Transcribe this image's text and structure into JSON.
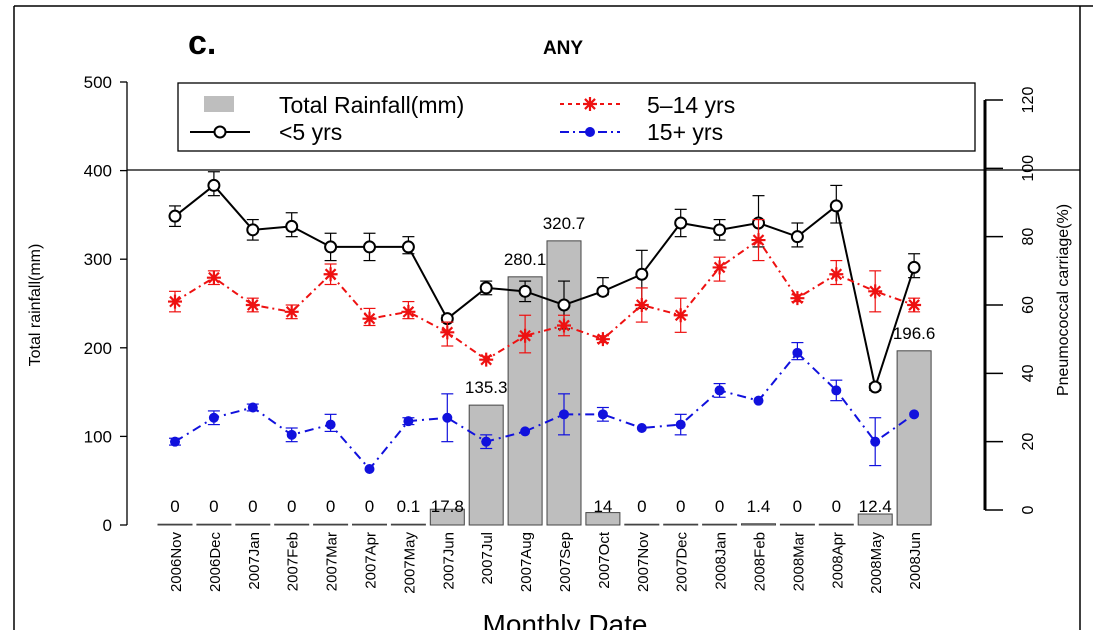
{
  "panel_letter": "c.",
  "chart_data": {
    "type": "bar",
    "title": "ANY",
    "xlabel": "Monthly Date",
    "ylabel": "Total rainfall(mm)",
    "y2label": "Pneumococcal carriage(%)",
    "ylim": [
      0,
      500
    ],
    "y2lim": [
      0,
      120
    ],
    "yticks": [
      "0",
      "100",
      "200",
      "300",
      "400",
      "500"
    ],
    "y2ticks": [
      "0",
      "20",
      "40",
      "60",
      "80",
      "100",
      "120"
    ],
    "grid": false,
    "legend_position": "top",
    "categories": [
      "2006Nov",
      "2006Dec",
      "2007Jan",
      "2007Feb",
      "2007Mar",
      "2007Apr",
      "2007May",
      "2007Jun",
      "2007Jul",
      "2007Aug",
      "2007Sep",
      "2007Oct",
      "2007Nov",
      "2007Dec",
      "2008Jan",
      "2008Feb",
      "2008Mar",
      "2008Apr",
      "2008May",
      "2008Jun"
    ],
    "bar_series": {
      "name": "Total Rainfall(mm)",
      "color": "#bebebe",
      "values": [
        0,
        0,
        0,
        0,
        0,
        0,
        0.1,
        17.8,
        135.3,
        280.1,
        320.7,
        14,
        0,
        0,
        0,
        1.4,
        0,
        0,
        12.4,
        196.6
      ],
      "labels": [
        "0",
        "0",
        "0",
        "0",
        "0",
        "0",
        "0.1",
        "17.8",
        "135.3",
        "280.1",
        "320.7",
        "14",
        "0",
        "0",
        "0",
        "1.4",
        "0",
        "0",
        "12.4",
        "196.6"
      ]
    },
    "series": [
      {
        "name": "<5 yrs",
        "color": "#000000",
        "marker": "open-circle",
        "axis": "right",
        "values": [
          86,
          95,
          82,
          83,
          77,
          77,
          77,
          56,
          65,
          64,
          60,
          64,
          69,
          84,
          82,
          84,
          80,
          89,
          36,
          71
        ],
        "err_lo": [
          83,
          92,
          79,
          80,
          73,
          73,
          75,
          55,
          63,
          61,
          53,
          63,
          59,
          80,
          79,
          77,
          77,
          84,
          35,
          68
        ],
        "err_hi": [
          89,
          99,
          85,
          87,
          81,
          81,
          80,
          57,
          67,
          67,
          67,
          68,
          76,
          88,
          85,
          92,
          84,
          95,
          37,
          75
        ]
      },
      {
        "name": "5–14 yrs",
        "color": "#ee1111",
        "marker": "star",
        "axis": "right",
        "values": [
          61,
          68,
          60,
          58,
          69,
          56,
          58,
          52,
          44,
          51,
          54,
          50,
          60,
          57,
          71,
          79,
          62,
          69,
          64,
          60
        ],
        "err_lo": [
          58,
          66,
          58,
          56,
          66,
          54,
          56,
          48,
          44,
          46,
          51,
          49,
          55,
          52,
          67,
          73,
          61,
          66,
          58,
          58
        ],
        "err_hi": [
          64,
          70,
          62,
          60,
          72,
          59,
          61,
          55,
          45,
          57,
          57,
          51,
          65,
          62,
          74,
          85,
          63,
          73,
          70,
          62
        ]
      },
      {
        "name": "15+ yrs",
        "color": "#1111dd",
        "marker": "filled-circle",
        "axis": "right",
        "values": [
          20,
          27,
          30,
          22,
          25,
          12,
          26,
          27,
          20,
          23,
          28,
          28,
          24,
          25,
          35,
          32,
          46,
          35,
          20,
          28
        ],
        "err_lo": [
          19,
          25,
          29,
          20,
          23,
          12,
          25,
          20,
          18,
          23,
          22,
          26,
          24,
          22,
          33,
          32,
          44,
          32,
          13,
          28
        ],
        "err_hi": [
          21,
          29,
          31,
          24,
          28,
          12,
          27,
          34,
          22,
          23,
          34,
          30,
          24,
          28,
          37,
          32,
          49,
          38,
          27,
          28
        ]
      }
    ]
  }
}
